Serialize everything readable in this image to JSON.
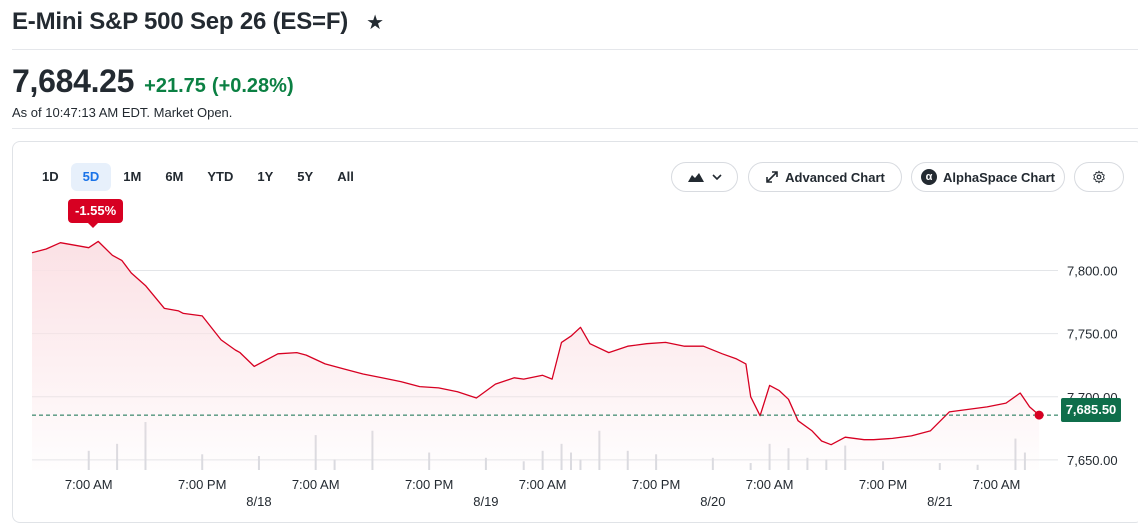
{
  "header": {
    "title": "E-Mini S&P 500 Sep 26 (ES=F)",
    "price": "7,684.25",
    "change": "+21.75",
    "change_pct": "(+0.28%)",
    "as_of": "As of 10:47:13 AM EDT. Market Open."
  },
  "toolbar": {
    "ranges": [
      "1D",
      "5D",
      "1M",
      "6M",
      "YTD",
      "1Y",
      "5Y",
      "All"
    ],
    "active_range": "5D",
    "advanced_chart_label": "Advanced Chart",
    "alphaspace_chart_label": "AlphaSpace Chart",
    "icons": {
      "chart_type": "mountain-chart-icon",
      "chevron": "chevron-down-icon",
      "expand": "expand-arrows-icon",
      "alphaspace": "alpha-icon",
      "settings": "gear-icon"
    }
  },
  "change_badge": "-1.55%",
  "colors": {
    "line": "#d70022",
    "area_fill": "#fbe1e5",
    "positive": "#0b8043",
    "price_tag": "#0f6e4b",
    "active_tab": "#1a73e8"
  },
  "chart_data": {
    "type": "area",
    "title": "",
    "xlabel": "",
    "ylabel": "",
    "ylim": [
      7642,
      7836
    ],
    "y_ticks": [
      7650,
      7700,
      7750,
      7800
    ],
    "y_tick_labels": [
      "7,650.00",
      "7,700.00",
      "7,750.00",
      "7,800.00"
    ],
    "x_tick_labels": [
      {
        "label": "7:00 AM",
        "t": 6
      },
      {
        "label": "7:00 PM",
        "t": 18
      },
      {
        "label": "7:00 AM",
        "t": 30
      },
      {
        "label": "7:00 PM",
        "t": 42
      },
      {
        "label": "7:00 AM",
        "t": 54
      },
      {
        "label": "7:00 PM",
        "t": 66
      },
      {
        "label": "7:00 AM",
        "t": 78
      },
      {
        "label": "7:00 PM",
        "t": 90
      },
      {
        "label": "7:00 AM",
        "t": 102
      }
    ],
    "date_labels": [
      {
        "label": "8/18",
        "t": 24
      },
      {
        "label": "8/19",
        "t": 48
      },
      {
        "label": "8/20",
        "t": 72
      },
      {
        "label": "8/21",
        "t": 96
      }
    ],
    "reference_line": {
      "value": 7685.5,
      "label": "7,685.50",
      "style": "dashed"
    },
    "last_point": {
      "t": 106.5,
      "value": 7685.5
    },
    "series": [
      {
        "t": [
          0,
          1.5,
          3,
          4.5,
          6,
          7,
          8.5,
          9.5,
          10.5,
          12,
          14,
          15.5,
          16,
          18,
          20,
          21.5,
          22,
          23.5,
          26,
          28,
          29,
          31,
          33,
          35,
          37,
          39,
          41,
          43,
          45,
          47,
          49,
          51,
          52,
          54,
          55,
          56,
          57,
          58,
          59,
          61,
          63,
          65,
          67,
          69,
          71,
          73,
          74.5,
          75.5,
          76,
          77,
          78,
          79,
          80,
          81,
          82.5,
          83.5,
          84.5,
          86,
          88,
          89,
          91,
          93,
          95,
          97,
          99,
          101,
          103,
          104.5,
          105.5,
          106.5
        ],
        "values": [
          7814,
          7817,
          7822,
          7820,
          7818,
          7823,
          7812,
          7808,
          7798,
          7788,
          7770,
          7768,
          7766,
          7764,
          7745,
          7737,
          7735,
          7724,
          7734,
          7735,
          7733,
          7726,
          7722,
          7718,
          7715,
          7712,
          7708,
          7707,
          7704,
          7699,
          7710,
          7715,
          7714,
          7717,
          7714,
          7743,
          7748,
          7755,
          7742,
          7735,
          7740,
          7742,
          7743,
          7740,
          7740,
          7734,
          7730,
          7726,
          7700,
          7685,
          7709,
          7705,
          7698,
          7681,
          7673,
          7665,
          7662,
          7668,
          7666,
          7666,
          7667,
          7669,
          7673,
          7688,
          7690,
          7692,
          7695,
          7703,
          7692,
          7685.5
        ]
      }
    ],
    "volume": {
      "t": [
        6,
        9,
        12,
        18,
        24,
        30,
        32,
        36,
        42,
        48,
        52,
        54,
        56,
        57,
        58,
        60,
        63,
        66,
        72,
        76,
        78,
        80,
        82,
        84,
        86,
        90,
        96,
        100,
        104,
        105
      ],
      "values": [
        22,
        30,
        55,
        18,
        16,
        40,
        12,
        45,
        20,
        14,
        10,
        22,
        30,
        20,
        12,
        45,
        22,
        18,
        14,
        8,
        30,
        25,
        14,
        12,
        28,
        10,
        8,
        6,
        36,
        20
      ]
    }
  }
}
